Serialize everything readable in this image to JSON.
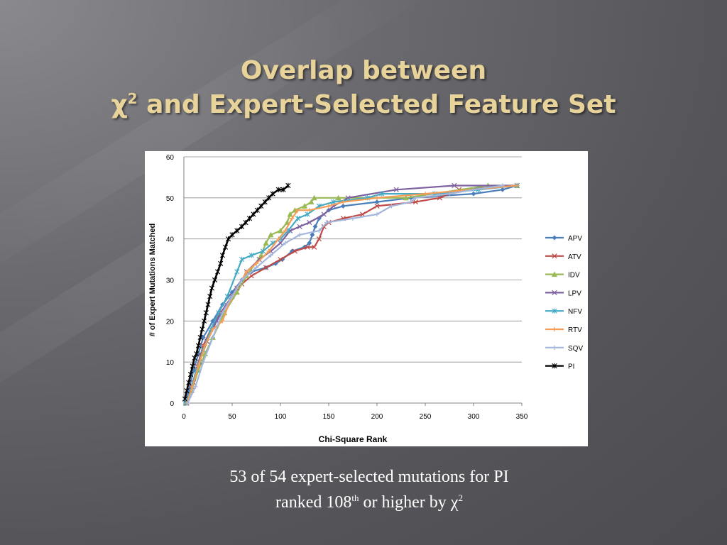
{
  "slide": {
    "title_line1": "Overlap between",
    "title_chi": "χ",
    "title_chi_sup": "2",
    "title_line2_rest": " and Expert-Selected Feature Set",
    "caption_line1": "53 of 54 expert-selected mutations for PI",
    "caption_line2_pre": "ranked 108",
    "caption_line2_sup": "th",
    "caption_line2_mid": " or higher by ",
    "caption_chi": "χ",
    "caption_chi_sup": "2"
  },
  "chart_data": {
    "type": "line",
    "title": "",
    "xlabel": "Chi-Square Rank",
    "ylabel": "# of Expert Mutations Matched",
    "xlim": [
      0,
      350
    ],
    "ylim": [
      0,
      60
    ],
    "xticks": [
      0,
      50,
      100,
      150,
      200,
      250,
      300,
      350
    ],
    "yticks": [
      0,
      10,
      20,
      30,
      40,
      50,
      60
    ],
    "grid": "horizontal",
    "legend_position": "right",
    "series": [
      {
        "name": "APV",
        "color": "#4a7ebb",
        "marker": "diamond",
        "points": [
          [
            2,
            0
          ],
          [
            5,
            3
          ],
          [
            10,
            8
          ],
          [
            15,
            12
          ],
          [
            20,
            16
          ],
          [
            30,
            20
          ],
          [
            40,
            24
          ],
          [
            50,
            27
          ],
          [
            60,
            30
          ],
          [
            70,
            32
          ],
          [
            85,
            33
          ],
          [
            95,
            34
          ],
          [
            102,
            35
          ],
          [
            112,
            37
          ],
          [
            125,
            38
          ],
          [
            130,
            39
          ],
          [
            133,
            41
          ],
          [
            136,
            43
          ],
          [
            140,
            45
          ],
          [
            150,
            47
          ],
          [
            165,
            48
          ],
          [
            200,
            49
          ],
          [
            235,
            50
          ],
          [
            300,
            51
          ],
          [
            330,
            52
          ],
          [
            345,
            53
          ]
        ]
      },
      {
        "name": "ATV",
        "color": "#be4b48",
        "marker": "x",
        "points": [
          [
            3,
            0
          ],
          [
            8,
            4
          ],
          [
            14,
            9
          ],
          [
            20,
            14
          ],
          [
            28,
            18
          ],
          [
            38,
            22
          ],
          [
            50,
            26
          ],
          [
            60,
            29
          ],
          [
            70,
            31
          ],
          [
            85,
            33
          ],
          [
            100,
            35
          ],
          [
            115,
            37
          ],
          [
            128,
            38
          ],
          [
            135,
            38
          ],
          [
            140,
            40
          ],
          [
            145,
            43
          ],
          [
            150,
            44
          ],
          [
            165,
            45
          ],
          [
            185,
            46
          ],
          [
            200,
            48
          ],
          [
            240,
            49
          ],
          [
            265,
            50
          ],
          [
            285,
            52
          ],
          [
            345,
            53
          ]
        ]
      },
      {
        "name": "IDV",
        "color": "#98b954",
        "marker": "triangle",
        "points": [
          [
            2,
            0
          ],
          [
            8,
            3
          ],
          [
            15,
            8
          ],
          [
            22,
            12
          ],
          [
            30,
            16
          ],
          [
            42,
            22
          ],
          [
            55,
            27
          ],
          [
            65,
            31
          ],
          [
            80,
            36
          ],
          [
            85,
            39
          ],
          [
            90,
            41
          ],
          [
            100,
            42
          ],
          [
            107,
            44
          ],
          [
            110,
            46
          ],
          [
            115,
            47
          ],
          [
            125,
            48
          ],
          [
            132,
            49
          ],
          [
            135,
            50
          ],
          [
            160,
            50
          ],
          [
            230,
            50
          ],
          [
            315,
            53
          ],
          [
            345,
            53
          ]
        ]
      },
      {
        "name": "LPV",
        "color": "#7d60a0",
        "marker": "x",
        "points": [
          [
            3,
            0
          ],
          [
            10,
            5
          ],
          [
            16,
            10
          ],
          [
            24,
            15
          ],
          [
            34,
            20
          ],
          [
            44,
            24
          ],
          [
            55,
            28
          ],
          [
            65,
            32
          ],
          [
            78,
            35
          ],
          [
            90,
            37
          ],
          [
            100,
            39
          ],
          [
            110,
            42
          ],
          [
            120,
            43
          ],
          [
            130,
            44
          ],
          [
            145,
            46
          ],
          [
            155,
            48
          ],
          [
            170,
            50
          ],
          [
            220,
            52
          ],
          [
            280,
            53
          ],
          [
            345,
            53
          ]
        ]
      },
      {
        "name": "NFV",
        "color": "#46aac5",
        "marker": "asterisk",
        "points": [
          [
            2,
            0
          ],
          [
            7,
            3
          ],
          [
            13,
            8
          ],
          [
            20,
            13
          ],
          [
            28,
            18
          ],
          [
            36,
            22
          ],
          [
            45,
            26
          ],
          [
            55,
            32
          ],
          [
            60,
            35
          ],
          [
            70,
            36
          ],
          [
            82,
            37
          ],
          [
            92,
            39
          ],
          [
            100,
            40
          ],
          [
            108,
            42
          ],
          [
            118,
            45
          ],
          [
            128,
            46
          ],
          [
            140,
            48
          ],
          [
            155,
            49
          ],
          [
            190,
            50
          ],
          [
            205,
            51
          ],
          [
            260,
            51
          ],
          [
            305,
            52
          ],
          [
            345,
            53
          ]
        ]
      },
      {
        "name": "RTV",
        "color": "#f59d56",
        "marker": "plus",
        "points": [
          [
            3,
            0
          ],
          [
            9,
            4
          ],
          [
            15,
            9
          ],
          [
            22,
            14
          ],
          [
            30,
            18
          ],
          [
            40,
            20
          ],
          [
            48,
            25
          ],
          [
            55,
            28
          ],
          [
            65,
            32
          ],
          [
            75,
            34
          ],
          [
            88,
            37
          ],
          [
            98,
            40
          ],
          [
            105,
            42
          ],
          [
            112,
            45
          ],
          [
            118,
            47
          ],
          [
            130,
            47
          ],
          [
            150,
            48
          ],
          [
            165,
            49
          ],
          [
            200,
            50
          ],
          [
            250,
            51
          ],
          [
            345,
            53
          ]
        ]
      },
      {
        "name": "SQV",
        "color": "#a5b6dc",
        "marker": "plus",
        "points": [
          [
            4,
            0
          ],
          [
            12,
            4
          ],
          [
            20,
            10
          ],
          [
            30,
            16
          ],
          [
            40,
            22
          ],
          [
            50,
            26
          ],
          [
            60,
            30
          ],
          [
            75,
            33
          ],
          [
            90,
            36
          ],
          [
            105,
            39
          ],
          [
            120,
            41
          ],
          [
            140,
            42
          ],
          [
            148,
            44
          ],
          [
            175,
            45
          ],
          [
            200,
            46
          ],
          [
            215,
            48
          ],
          [
            235,
            49
          ],
          [
            240,
            50
          ],
          [
            275,
            51
          ],
          [
            300,
            52
          ],
          [
            330,
            53
          ]
        ]
      },
      {
        "name": "PI",
        "color": "#000000",
        "marker": "asterisk",
        "points": [
          [
            1,
            1
          ],
          [
            3,
            3
          ],
          [
            5,
            5
          ],
          [
            7,
            7
          ],
          [
            9,
            9
          ],
          [
            11,
            11
          ],
          [
            13,
            12
          ],
          [
            15,
            14
          ],
          [
            17,
            16
          ],
          [
            19,
            18
          ],
          [
            21,
            20
          ],
          [
            23,
            22
          ],
          [
            25,
            24
          ],
          [
            27,
            26
          ],
          [
            29,
            28
          ],
          [
            32,
            30
          ],
          [
            35,
            32
          ],
          [
            38,
            34
          ],
          [
            40,
            36
          ],
          [
            43,
            38
          ],
          [
            46,
            40
          ],
          [
            50,
            41
          ],
          [
            55,
            42
          ],
          [
            60,
            43
          ],
          [
            64,
            44
          ],
          [
            68,
            45
          ],
          [
            72,
            46
          ],
          [
            76,
            47
          ],
          [
            80,
            48
          ],
          [
            84,
            49
          ],
          [
            88,
            50
          ],
          [
            92,
            51
          ],
          [
            98,
            52
          ],
          [
            103,
            52
          ],
          [
            108,
            53
          ]
        ]
      }
    ]
  }
}
